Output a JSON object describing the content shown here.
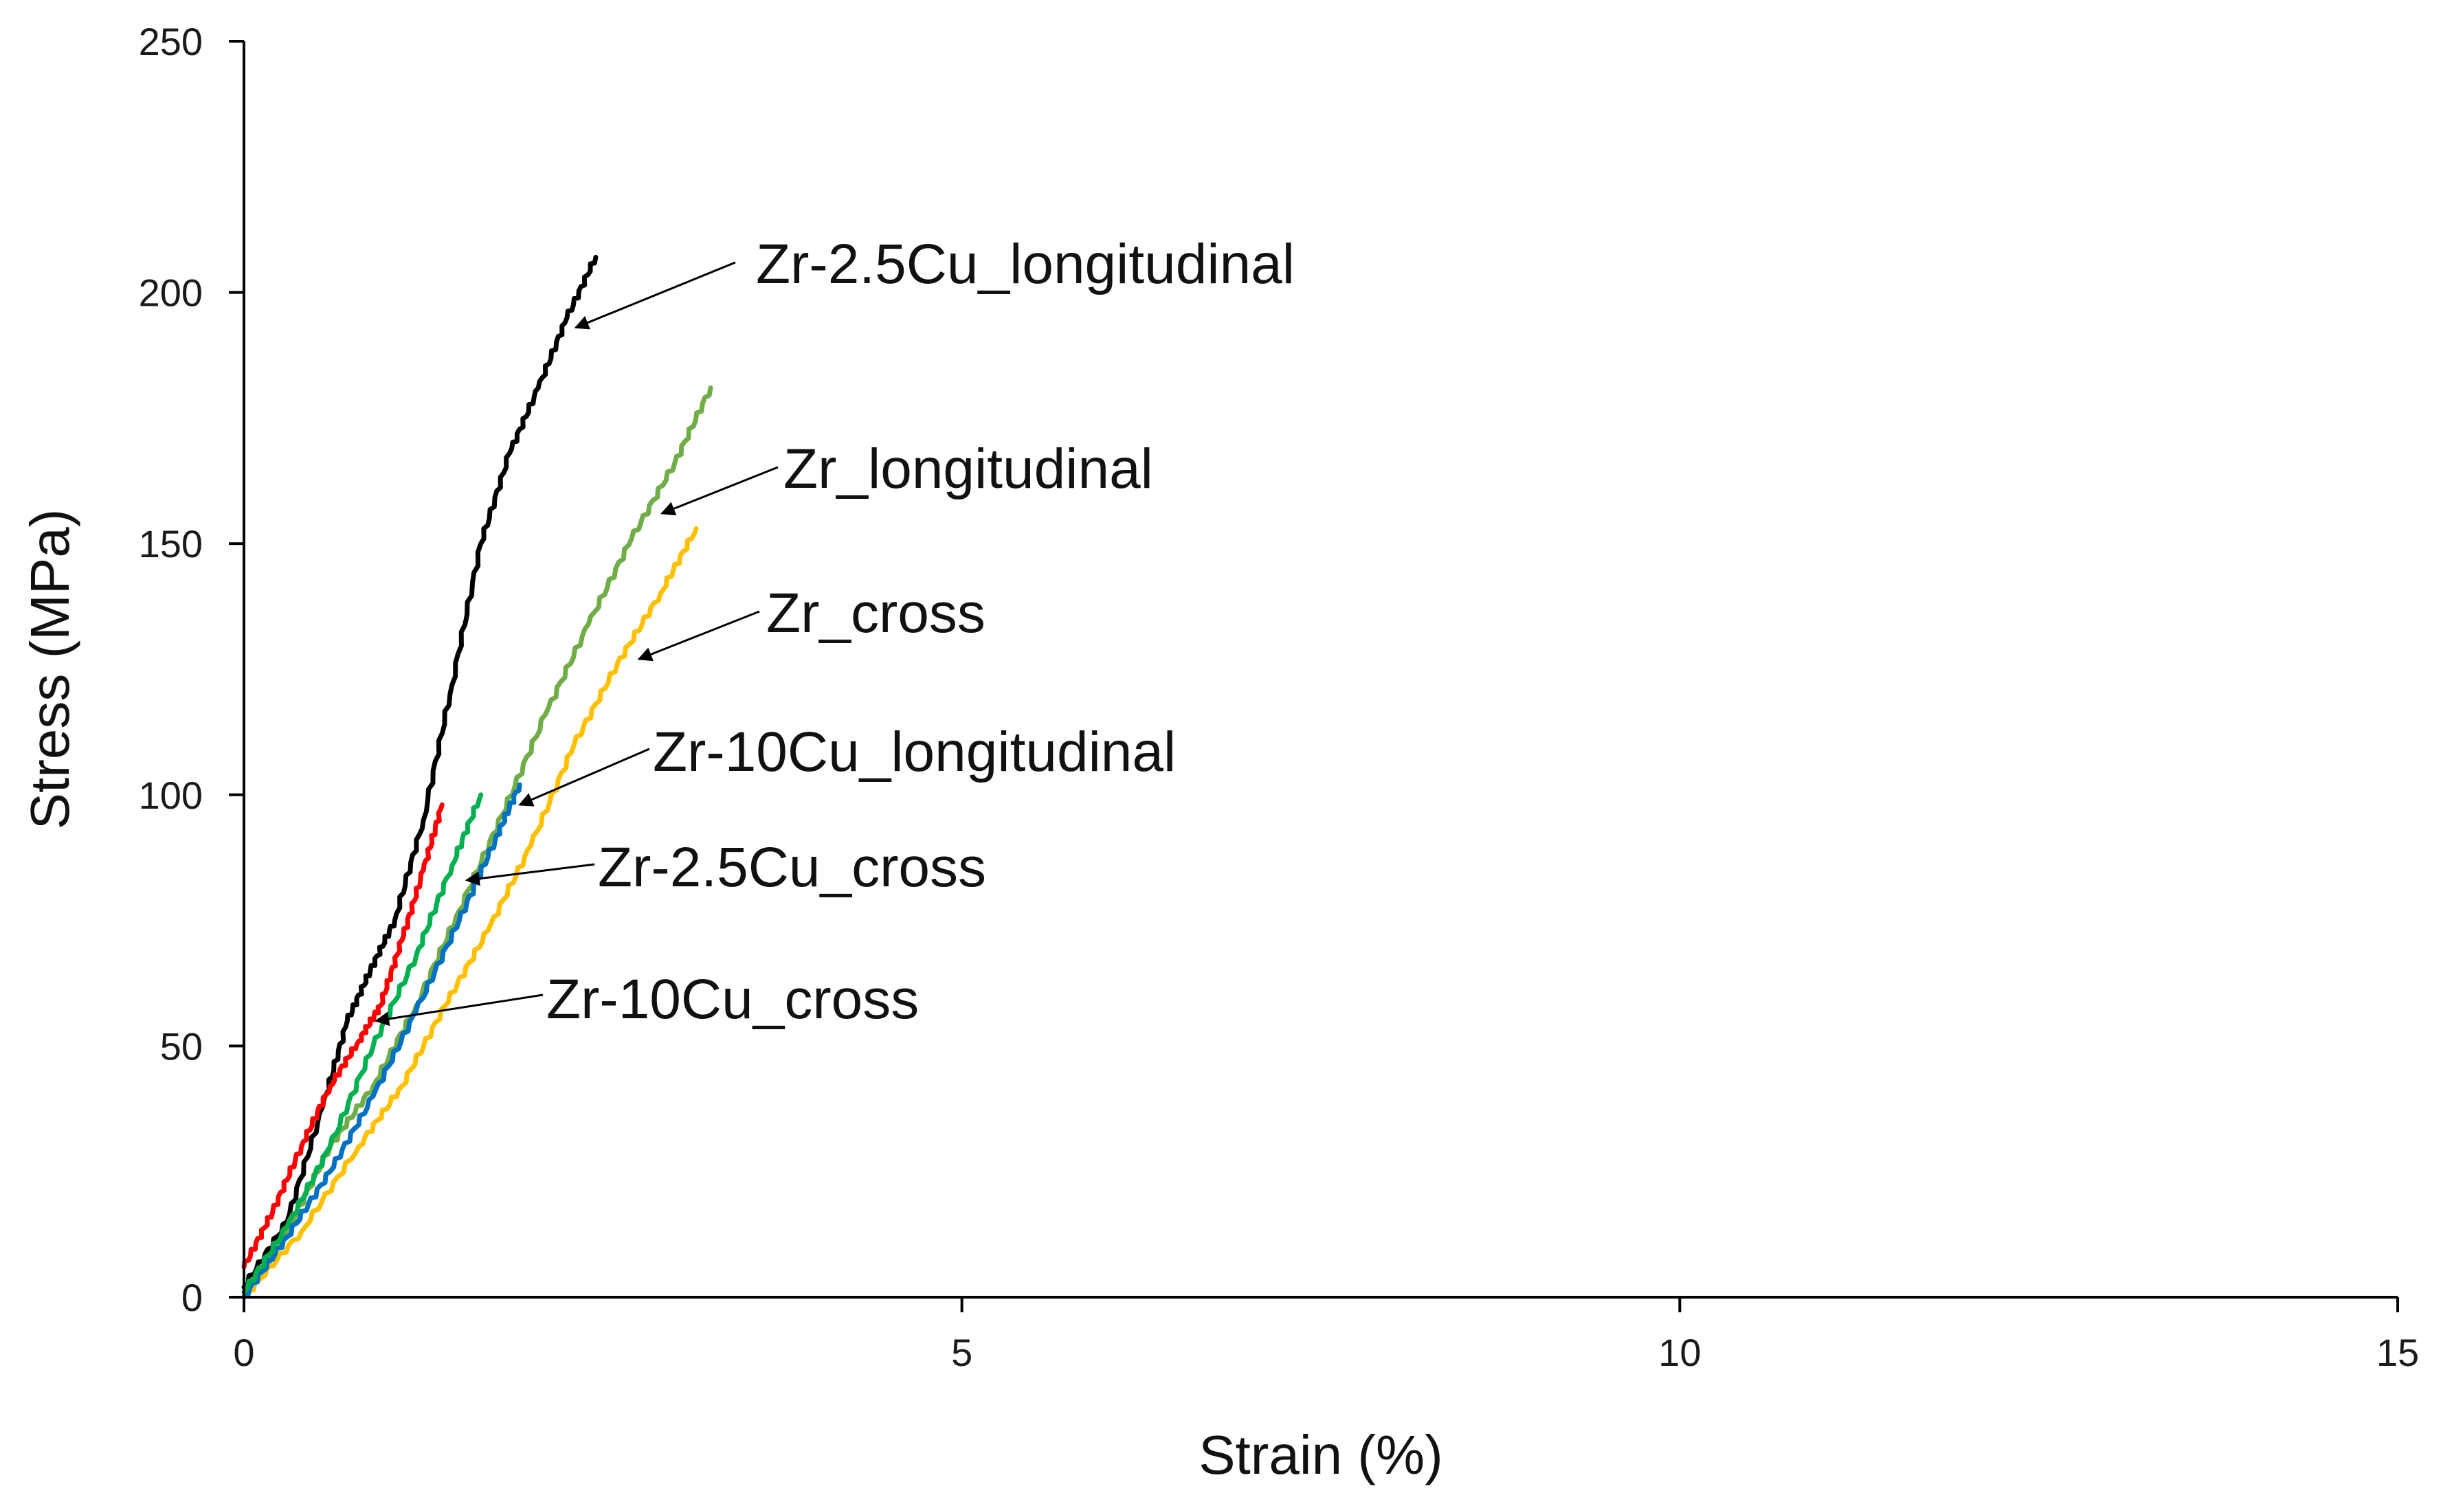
{
  "chart_data": {
    "type": "line",
    "title": "",
    "xlabel": "Strain (%)",
    "ylabel": "Stress (MPa)",
    "xlim": [
      0,
      15
    ],
    "ylim": [
      0,
      250
    ],
    "xticks": [
      0,
      5,
      10,
      15
    ],
    "yticks": [
      0,
      50,
      100,
      150,
      200,
      250
    ],
    "grid": false,
    "legend": "none",
    "series": [
      {
        "name": "Zr-2.5Cu_longitudinal",
        "color": "#000000",
        "x": [
          0,
          0.3,
          0.55,
          0.72,
          0.88,
          1.05,
          1.25,
          1.45,
          1.65,
          1.85,
          2.05,
          2.25,
          2.45
        ],
        "y": [
          2,
          15,
          38,
          55,
          65,
          75,
          95,
          122,
          150,
          168,
          181,
          195,
          207
        ]
      },
      {
        "name": "Zr_longitudinal",
        "color": "#70AD47",
        "x": [
          0,
          0.3,
          0.6,
          0.9,
          1.2,
          1.5,
          1.8,
          2.1,
          2.4,
          2.7,
          3.0,
          3.25
        ],
        "y": [
          0,
          13,
          30,
          42,
          58,
          77,
          96,
          116,
          134,
          151,
          166,
          181
        ]
      },
      {
        "name": "Zr_cross",
        "color": "#FFC000",
        "x": [
          0,
          0.4,
          0.8,
          1.1,
          1.4,
          1.7,
          2.0,
          2.3,
          2.6,
          2.9,
          3.15
        ],
        "y": [
          0,
          13,
          30,
          42,
          58,
          73,
          90,
          110,
          126,
          140,
          153
        ]
      },
      {
        "name": "Zr-10Cu_longitudinal",
        "color": "#0070C0",
        "x": [
          0,
          0.3,
          0.6,
          0.9,
          1.2,
          1.5,
          1.75,
          1.92
        ],
        "y": [
          0,
          12,
          25,
          40,
          57,
          75,
          91,
          102
        ]
      },
      {
        "name": "Zr-2.5Cu_cross",
        "color": "#00B050",
        "x": [
          0,
          0.3,
          0.6,
          0.9,
          1.2,
          1.45,
          1.65
        ],
        "y": [
          1,
          14,
          30,
          50,
          68,
          86,
          100
        ]
      },
      {
        "name": "Zr-10Cu_cross",
        "color": "#FF0000",
        "x": [
          0,
          0.2,
          0.4,
          0.6,
          0.8,
          0.95,
          1.1,
          1.25,
          1.38
        ],
        "y": [
          6,
          17,
          30,
          42,
          51,
          58,
          71,
          85,
          98
        ]
      }
    ],
    "annotations": [
      {
        "text": "Zr-2.5Cu_longitudinal",
        "points_to": [
          2.31,
          193
        ]
      },
      {
        "text": "Zr_longitudinal",
        "points_to": [
          2.91,
          156
        ]
      },
      {
        "text": "Zr_cross",
        "points_to": [
          2.75,
          127
        ]
      },
      {
        "text": "Zr-10Cu_longitudinal",
        "points_to": [
          1.92,
          98
        ]
      },
      {
        "text": "Zr-2.5Cu_cross",
        "points_to": [
          1.55,
          83
        ]
      },
      {
        "text": "Zr-10Cu_cross",
        "points_to": [
          0.92,
          55
        ]
      }
    ]
  }
}
